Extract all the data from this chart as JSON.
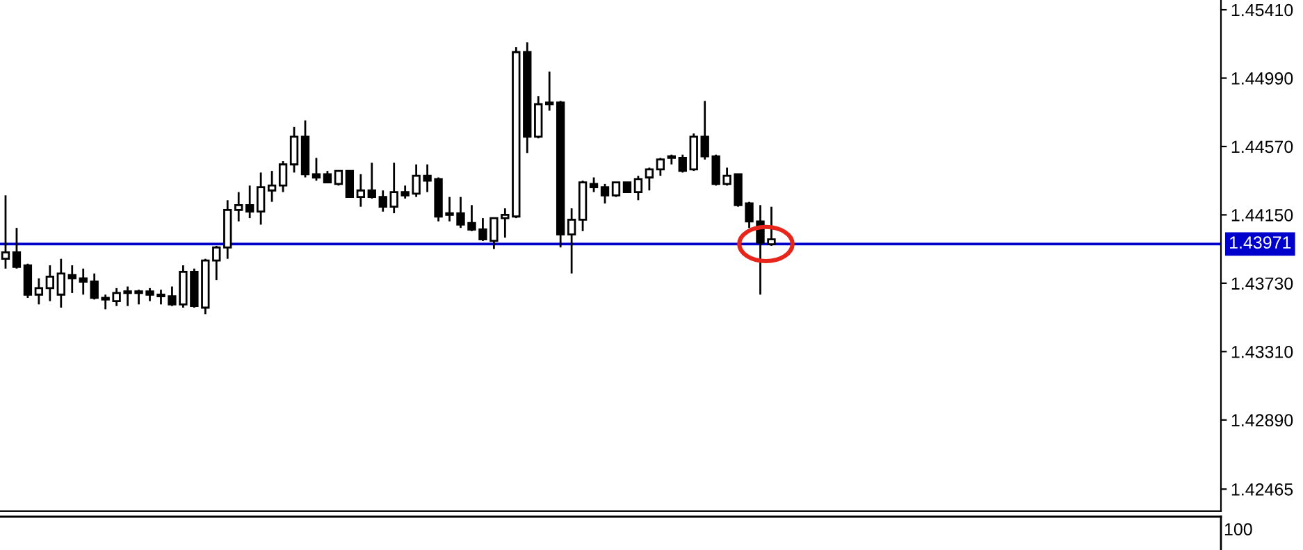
{
  "chart_data": {
    "type": "candlestick",
    "categories": [
      null,
      null,
      null,
      null,
      null,
      null,
      null,
      null,
      null,
      null,
      null,
      null,
      null,
      null,
      null,
      null,
      null,
      null,
      null,
      null,
      null,
      null,
      null,
      null,
      null,
      null,
      null,
      null,
      null,
      null,
      null,
      null,
      null,
      null,
      null,
      null,
      null,
      null,
      null,
      null,
      null,
      null,
      null,
      null,
      null,
      null,
      null,
      null,
      null,
      null,
      null,
      null,
      null,
      null,
      null,
      null,
      null,
      null,
      null,
      null,
      null,
      null,
      null,
      null,
      null,
      null,
      null,
      null,
      null,
      null,
      null,
      null,
      null,
      null,
      null,
      null,
      null,
      null,
      null,
      null,
      null,
      null,
      null,
      null,
      null,
      null,
      null,
      null,
      null,
      null,
      null,
      null,
      null,
      null,
      null,
      null,
      null,
      null,
      null,
      null,
      null,
      null,
      null,
      null,
      null,
      null,
      null,
      null,
      null,
      null
    ],
    "ohlc": [
      [
        1.4388,
        1.4427,
        1.4382,
        1.4392
      ],
      [
        1.4392,
        1.4407,
        1.4382,
        1.4383
      ],
      [
        1.4384,
        1.4385,
        1.4364,
        1.4366
      ],
      [
        1.4366,
        1.4376,
        1.436,
        1.437
      ],
      [
        1.437,
        1.4384,
        1.4362,
        1.4377
      ],
      [
        1.4366,
        1.4388,
        1.4358,
        1.4379
      ],
      [
        1.4378,
        1.4384,
        1.4367,
        1.4376
      ],
      [
        1.4376,
        1.4382,
        1.4366,
        1.4374
      ],
      [
        1.4374,
        1.4379,
        1.4363,
        1.4364
      ],
      [
        1.4364,
        1.4366,
        1.4357,
        1.4363
      ],
      [
        1.4362,
        1.437,
        1.4359,
        1.4367
      ],
      [
        1.4368,
        1.4371,
        1.4359,
        1.4367
      ],
      [
        1.4367,
        1.4369,
        1.436,
        1.4368
      ],
      [
        1.4368,
        1.437,
        1.4362,
        1.4366
      ],
      [
        1.4366,
        1.4369,
        1.436,
        1.4365
      ],
      [
        1.4365,
        1.4371,
        1.4359,
        1.436
      ],
      [
        1.436,
        1.4384,
        1.4358,
        1.438
      ],
      [
        1.438,
        1.4382,
        1.4358,
        1.4359
      ],
      [
        1.4358,
        1.4388,
        1.4354,
        1.4387
      ],
      [
        1.4387,
        1.4396,
        1.4375,
        1.4395
      ],
      [
        1.4395,
        1.4424,
        1.4388,
        1.4418
      ],
      [
        1.4418,
        1.4429,
        1.4411,
        1.4421
      ],
      [
        1.4421,
        1.4433,
        1.4413,
        1.4417
      ],
      [
        1.4417,
        1.4441,
        1.4409,
        1.4432
      ],
      [
        1.443,
        1.4442,
        1.4423,
        1.4433
      ],
      [
        1.4433,
        1.4448,
        1.4429,
        1.4446
      ],
      [
        1.4446,
        1.4469,
        1.4441,
        1.4463
      ],
      [
        1.4463,
        1.4473,
        1.4438,
        1.444
      ],
      [
        1.444,
        1.445,
        1.4436,
        1.4438
      ],
      [
        1.444,
        1.4442,
        1.4435,
        1.4435
      ],
      [
        1.4434,
        1.4442,
        1.4433,
        1.4442
      ],
      [
        1.4442,
        1.4442,
        1.4426,
        1.4426
      ],
      [
        1.4426,
        1.444,
        1.442,
        1.443
      ],
      [
        1.443,
        1.4447,
        1.4425,
        1.4426
      ],
      [
        1.4426,
        1.443,
        1.4417,
        1.442
      ],
      [
        1.442,
        1.4447,
        1.4416,
        1.4429
      ],
      [
        1.4429,
        1.4433,
        1.4425,
        1.4427
      ],
      [
        1.4428,
        1.4446,
        1.4426,
        1.4439
      ],
      [
        1.4439,
        1.4446,
        1.4429,
        1.4436
      ],
      [
        1.4437,
        1.4438,
        1.4411,
        1.4414
      ],
      [
        1.4415,
        1.4426,
        1.4411,
        1.4416
      ],
      [
        1.4416,
        1.4426,
        1.4407,
        1.4409
      ],
      [
        1.441,
        1.4421,
        1.4405,
        1.4406
      ],
      [
        1.4406,
        1.4413,
        1.4399,
        1.44
      ],
      [
        1.4399,
        1.4413,
        1.4394,
        1.4413
      ],
      [
        1.4413,
        1.4419,
        1.4401,
        1.4415
      ],
      [
        1.4414,
        1.4518,
        1.4413,
        1.4515
      ],
      [
        1.4515,
        1.4521,
        1.4453,
        1.4463
      ],
      [
        1.4463,
        1.4488,
        1.4462,
        1.4483
      ],
      [
        1.4483,
        1.4503,
        1.4479,
        1.4484
      ],
      [
        1.4484,
        1.4485,
        1.4395,
        1.4403
      ],
      [
        1.4403,
        1.4419,
        1.4379,
        1.4412
      ],
      [
        1.4412,
        1.4436,
        1.4405,
        1.4435
      ],
      [
        1.4434,
        1.4438,
        1.4429,
        1.4432
      ],
      [
        1.4432,
        1.4434,
        1.4422,
        1.4427
      ],
      [
        1.4427,
        1.4435,
        1.4426,
        1.4435
      ],
      [
        1.4435,
        1.4435,
        1.4429,
        1.4429
      ],
      [
        1.4429,
        1.4439,
        1.4424,
        1.4437
      ],
      [
        1.4438,
        1.4444,
        1.443,
        1.4443
      ],
      [
        1.4443,
        1.445,
        1.4439,
        1.4449
      ],
      [
        1.4451,
        1.4452,
        1.4446,
        1.445
      ],
      [
        1.445,
        1.4452,
        1.4441,
        1.4442
      ],
      [
        1.4443,
        1.4465,
        1.4442,
        1.4463
      ],
      [
        1.4463,
        1.4485,
        1.4449,
        1.4451
      ],
      [
        1.4451,
        1.4452,
        1.4433,
        1.4434
      ],
      [
        1.4434,
        1.4444,
        1.4433,
        1.4439
      ],
      [
        1.444,
        1.444,
        1.442,
        1.4421
      ],
      [
        1.4422,
        1.4423,
        1.4407,
        1.4411
      ],
      [
        1.4411,
        1.4421,
        1.4366,
        1.4398
      ],
      [
        1.4397,
        1.442,
        1.4396,
        1.44
      ],
      null,
      null,
      null,
      null,
      null,
      null,
      null,
      null,
      null,
      null,
      null,
      null,
      null,
      null,
      null,
      null,
      null,
      null,
      null,
      null,
      null,
      null,
      null,
      null,
      null,
      null,
      null,
      null,
      null,
      null,
      null,
      null,
      null,
      null,
      null,
      null,
      null,
      null,
      null,
      null
    ],
    "ylim": [
      1.4233,
      1.4547
    ],
    "yticks": [
      {
        "value": 1.4541,
        "label": "1.45410"
      },
      {
        "value": 1.4499,
        "label": "1.44990"
      },
      {
        "value": 1.4457,
        "label": "1.44570"
      },
      {
        "value": 1.4415,
        "label": "1.44150"
      },
      {
        "value": 1.4373,
        "label": "1.43730"
      },
      {
        "value": 1.4331,
        "label": "1.43310"
      },
      {
        "value": 1.4289,
        "label": "1.42890"
      },
      1.42465
    ],
    "ref_lines": [
      {
        "axis": "y",
        "value": 1.43971,
        "label": "1.43971",
        "color": "#0000cc"
      }
    ],
    "annotations": [
      "100"
    ],
    "tick_labels": "y",
    "grid": false
  }
}
